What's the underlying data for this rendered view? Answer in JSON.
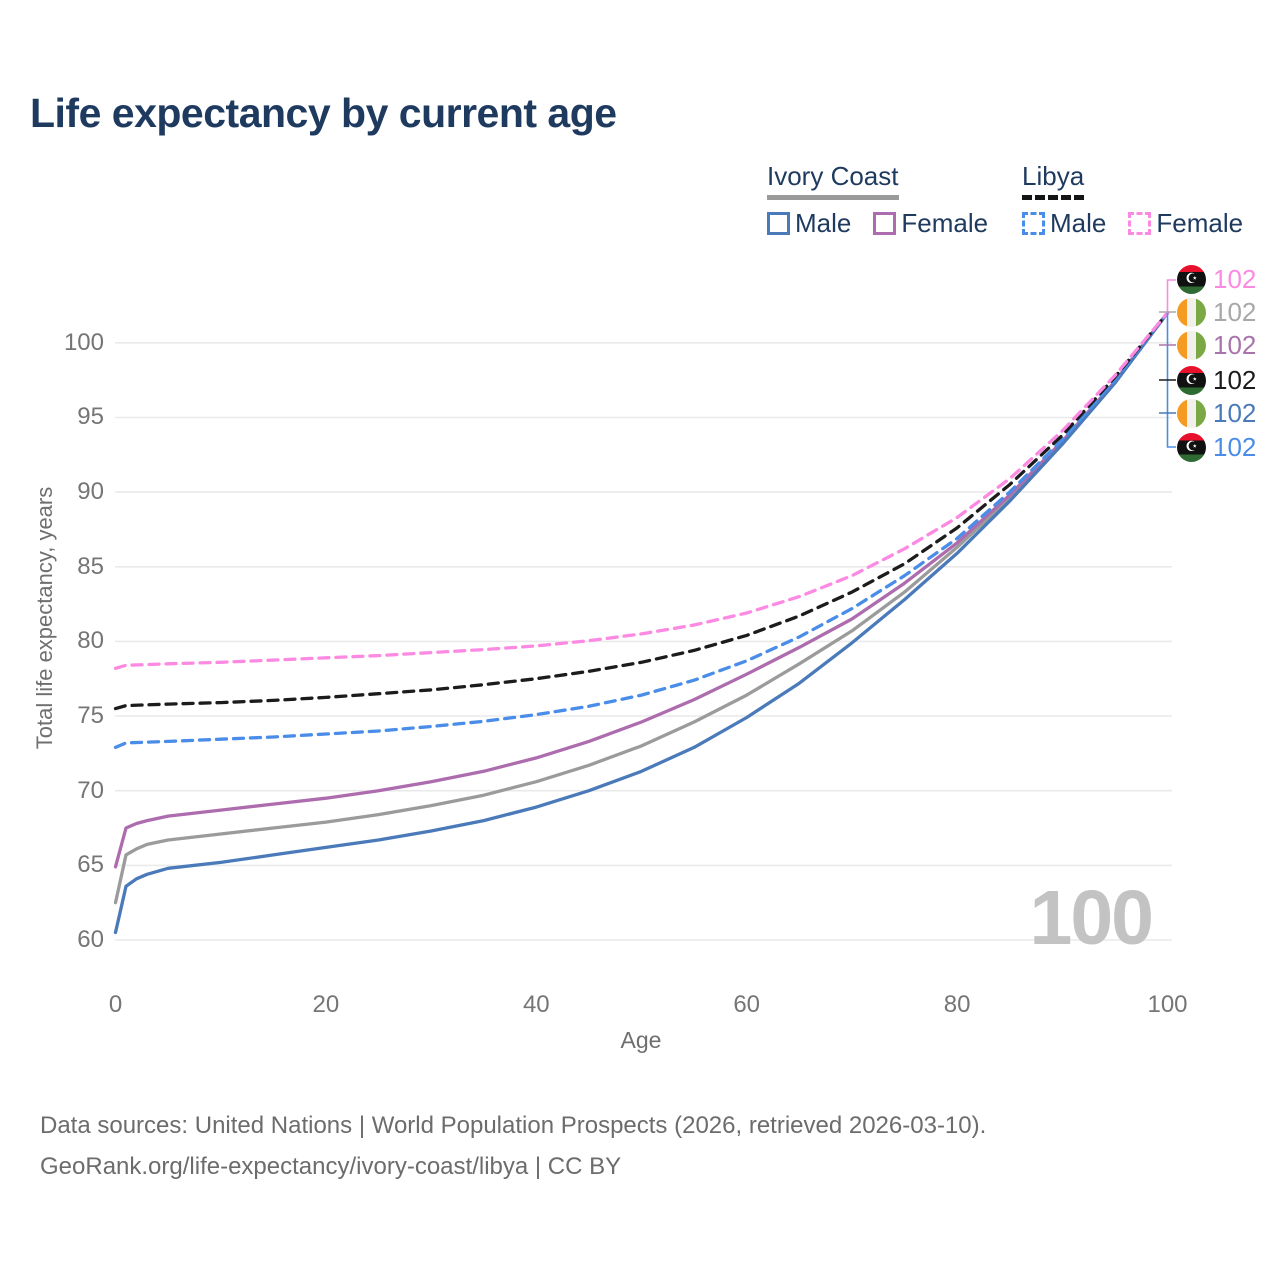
{
  "page": {
    "title": "Life expectancy by current age",
    "watermark_age_counter": "100",
    "footer_line1": "Data sources: United Nations | World Population Prospects (2026, retrieved 2026-03-10).",
    "footer_line2": "GeoRank.org/life-expectancy/ivory-coast/libya | CC BY"
  },
  "icons": {
    "crescent_star": "☪"
  },
  "colors": {
    "title_text": "#1e3a5f",
    "axis_text": "#757575",
    "grid_line": "#eaeaea",
    "watermark": "#c3c3c3",
    "ivory_coast_male": "#4a7ab9",
    "ivory_coast_female": "#ad6cae",
    "ivory_coast_total": "#9b9b9b",
    "libya_male": "#4a8de9",
    "libya_female": "#fc8ae2",
    "libya_total": "#1c1c1c"
  },
  "legend": {
    "groups": [
      {
        "title": "Ivory Coast",
        "underline_style": "solid",
        "underline_color": "#9a9a9a",
        "items": [
          {
            "label": "Male",
            "color": "#4a7ab9",
            "dashed": false
          },
          {
            "label": "Female",
            "color": "#ad6cae",
            "dashed": false
          }
        ]
      },
      {
        "title": "Libya",
        "underline_style": "dashed",
        "underline_color": "#151515",
        "items": [
          {
            "label": "Male",
            "color": "#4a8de9",
            "dashed": true
          },
          {
            "label": "Female",
            "color": "#fc8ae2",
            "dashed": true
          }
        ]
      }
    ]
  },
  "chart_data": {
    "type": "line",
    "title": "Life expectancy by current age",
    "xlabel": "Age",
    "ylabel": "Total life expectancy, years",
    "xlim": [
      0,
      100
    ],
    "ylim": [
      60,
      102
    ],
    "x_ticks": [
      0,
      20,
      40,
      60,
      80,
      100
    ],
    "y_ticks": [
      60,
      65,
      70,
      75,
      80,
      85,
      90,
      95,
      100
    ],
    "grid": "horizontal-only",
    "legend_position": "top-right",
    "series": [
      {
        "name": "Ivory Coast Total",
        "country": "Ivory Coast",
        "sex": "both",
        "color": "#9b9b9b",
        "dashed": false,
        "ages": [
          0,
          1,
          2,
          3,
          5,
          10,
          15,
          20,
          25,
          30,
          35,
          40,
          45,
          50,
          55,
          60,
          65,
          70,
          75,
          80,
          85,
          90,
          95,
          100
        ],
        "values": [
          62.5,
          65.7,
          66.1,
          66.4,
          66.7,
          67.1,
          67.5,
          67.9,
          68.4,
          69.0,
          69.7,
          70.6,
          71.7,
          73.0,
          74.6,
          76.4,
          78.5,
          80.7,
          83.3,
          86.3,
          89.6,
          93.3,
          97.4,
          102
        ]
      },
      {
        "name": "Ivory Coast Female",
        "country": "Ivory Coast",
        "sex": "female",
        "color": "#ad6cae",
        "dashed": false,
        "ages": [
          0,
          1,
          2,
          3,
          5,
          10,
          15,
          20,
          25,
          30,
          35,
          40,
          45,
          50,
          55,
          60,
          65,
          70,
          75,
          80,
          85,
          90,
          95,
          100
        ],
        "values": [
          64.9,
          67.5,
          67.8,
          68.0,
          68.3,
          68.7,
          69.1,
          69.5,
          70.0,
          70.6,
          71.3,
          72.2,
          73.3,
          74.6,
          76.1,
          77.8,
          79.6,
          81.5,
          83.9,
          86.6,
          89.8,
          93.4,
          97.4,
          102
        ]
      },
      {
        "name": "Ivory Coast Male",
        "country": "Ivory Coast",
        "sex": "male",
        "color": "#4a7ab9",
        "dashed": false,
        "ages": [
          0,
          1,
          2,
          3,
          5,
          10,
          15,
          20,
          25,
          30,
          35,
          40,
          45,
          50,
          55,
          60,
          65,
          70,
          75,
          80,
          85,
          90,
          95,
          100
        ],
        "values": [
          60.5,
          63.6,
          64.1,
          64.4,
          64.8,
          65.2,
          65.7,
          66.2,
          66.7,
          67.3,
          68.0,
          68.9,
          70.0,
          71.3,
          72.9,
          74.9,
          77.2,
          79.9,
          82.8,
          85.9,
          89.4,
          93.2,
          97.3,
          102
        ]
      },
      {
        "name": "Libya Male",
        "country": "Libya",
        "sex": "male",
        "color": "#4a8de9",
        "dashed": true,
        "ages": [
          0,
          1,
          5,
          10,
          15,
          20,
          25,
          30,
          35,
          40,
          45,
          50,
          55,
          60,
          65,
          70,
          75,
          80,
          85,
          90,
          95,
          100
        ],
        "values": [
          72.9,
          73.2,
          73.3,
          73.45,
          73.6,
          73.8,
          74.0,
          74.3,
          74.65,
          75.1,
          75.65,
          76.4,
          77.4,
          78.7,
          80.3,
          82.2,
          84.4,
          86.9,
          90.0,
          93.5,
          97.5,
          102
        ]
      },
      {
        "name": "Libya Total",
        "country": "Libya",
        "sex": "both",
        "color": "#1c1c1c",
        "dashed": true,
        "ages": [
          0,
          1,
          5,
          10,
          15,
          20,
          25,
          30,
          35,
          40,
          45,
          50,
          55,
          60,
          65,
          70,
          75,
          80,
          85,
          90,
          95,
          100
        ],
        "values": [
          75.5,
          75.7,
          75.8,
          75.9,
          76.05,
          76.25,
          76.5,
          76.75,
          77.1,
          77.5,
          78.0,
          78.6,
          79.4,
          80.4,
          81.7,
          83.3,
          85.2,
          87.6,
          90.5,
          93.8,
          97.7,
          102
        ]
      },
      {
        "name": "Libya Female",
        "country": "Libya",
        "sex": "female",
        "color": "#fc8ae2",
        "dashed": true,
        "ages": [
          0,
          1,
          5,
          10,
          15,
          20,
          25,
          30,
          35,
          40,
          45,
          50,
          55,
          60,
          65,
          70,
          75,
          80,
          85,
          90,
          95,
          100
        ],
        "values": [
          78.2,
          78.4,
          78.5,
          78.6,
          78.75,
          78.9,
          79.05,
          79.25,
          79.45,
          79.7,
          80.05,
          80.5,
          81.1,
          81.9,
          83.0,
          84.4,
          86.2,
          88.3,
          90.9,
          94.1,
          97.8,
          102
        ]
      }
    ]
  },
  "end_labels": {
    "rows": [
      {
        "flag": "libya",
        "series": "Libya Female",
        "value": "102",
        "color": "#fc8ae2"
      },
      {
        "flag": "ivory-coast",
        "series": "Ivory Coast Total",
        "value": "102",
        "color": "#a8a8a8"
      },
      {
        "flag": "ivory-coast",
        "series": "Ivory Coast Female",
        "value": "102",
        "color": "#a973ab"
      },
      {
        "flag": "libya",
        "series": "Libya Total",
        "value": "102",
        "color": "#1c1c1c"
      },
      {
        "flag": "ivory-coast",
        "series": "Ivory Coast Male",
        "value": "102",
        "color": "#4a7ab9"
      },
      {
        "flag": "libya",
        "series": "Libya Male",
        "value": "102",
        "color": "#4a8de9"
      }
    ]
  }
}
